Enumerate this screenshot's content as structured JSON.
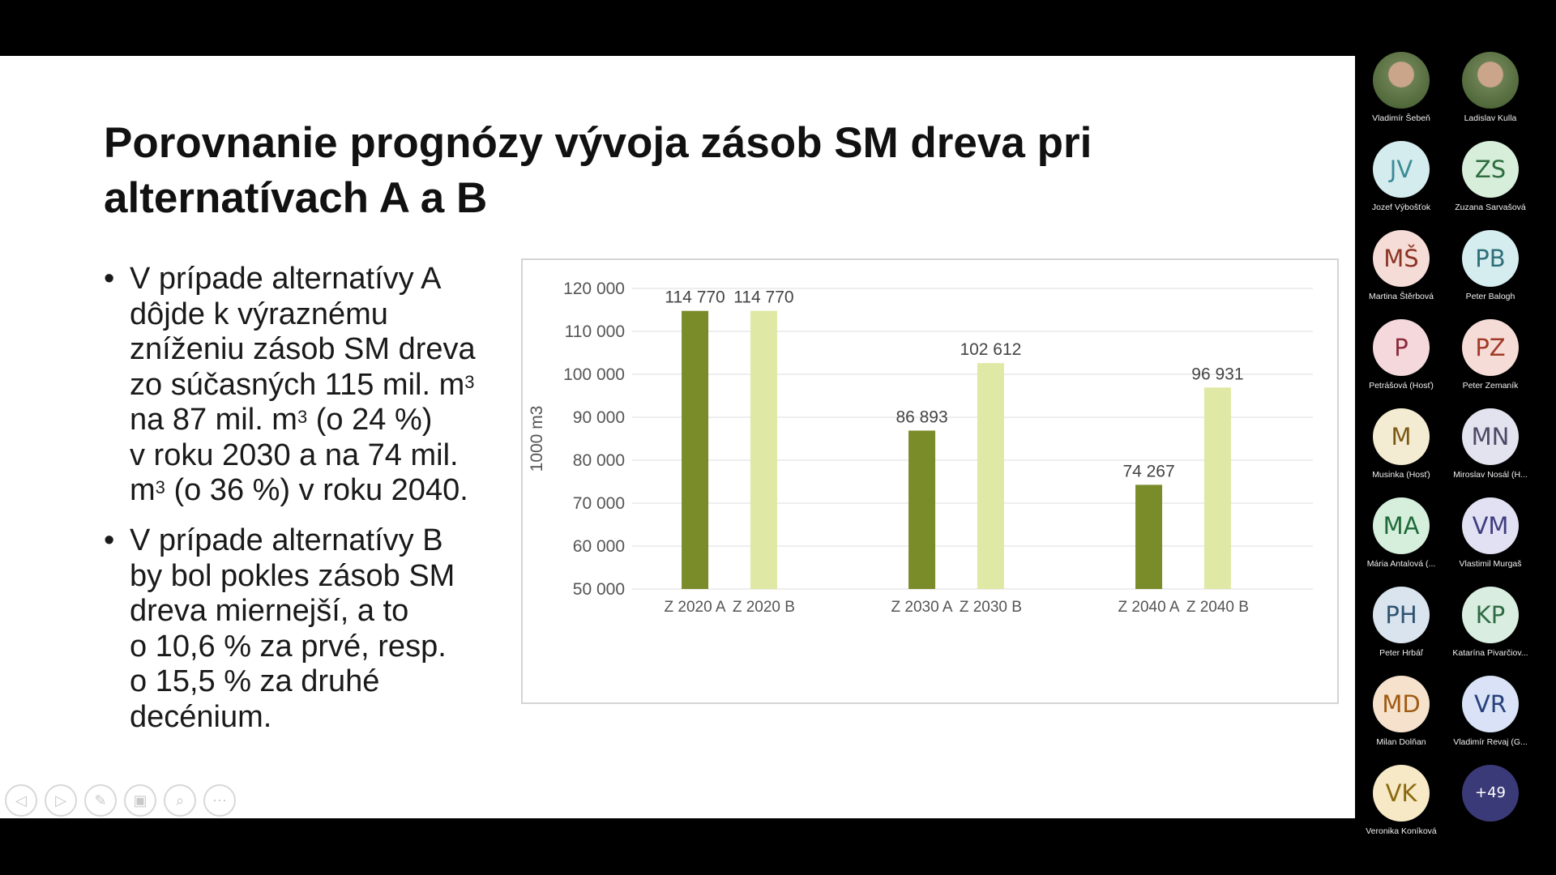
{
  "slide": {
    "title_lines": [
      "Porovnanie prognózy vývoja zásob SM dreva pri",
      "alternatívach A a B"
    ],
    "bullet_symbol": "•",
    "bullet1": {
      "l1": "V prípade alternatívy A",
      "l2": "dôjde k výraznému",
      "l3": "zníženiu zásob SM dreva",
      "l4": "zo súčasných 115 mil. m",
      "l4_sup": "3",
      "l5": "na 87 mil. m",
      "l5_sup": "3",
      "l5_rest": " (o 24 %)",
      "l6": "v roku 2030 a na 74 mil.",
      "l7": "m",
      "l7_sup": "3",
      "l7_rest": " (o 36 %) v roku 2040."
    },
    "bullet2": {
      "lines": [
        "V prípade alternatívy B",
        "by bol pokles zásob SM",
        "dreva miernejší, a to",
        "o 10,6 % za prvé, resp.",
        "o 15,5 % za druhé",
        "decénium."
      ]
    }
  },
  "chart_data": {
    "type": "bar",
    "categories": [
      "Z 2020 A",
      "Z 2020 B",
      "Z 2030 A",
      "Z 2030 B",
      "Z 2040 A",
      "Z 2040 B"
    ],
    "values": [
      114770,
      114770,
      86893,
      102612,
      74267,
      96931
    ],
    "value_labels": [
      "114 770",
      "114 770",
      "86 893",
      "102 612",
      "74 267",
      "96 931"
    ],
    "ylabel": "1000 m3",
    "ylim": [
      50000,
      120000
    ],
    "y_ticks": [
      50000,
      60000,
      70000,
      80000,
      90000,
      100000,
      110000,
      120000
    ],
    "y_tick_labels": [
      "50 000",
      "60 000",
      "70 000",
      "80 000",
      "90 000",
      "100 000",
      "110 000",
      "120 000"
    ],
    "grid": true,
    "colors": {
      "A": "#7a8c2a",
      "B": "#dfe8a4"
    }
  },
  "nav": {
    "icons": [
      "previous-slide-icon",
      "next-slide-icon",
      "pen-icon",
      "slides-icon",
      "zoom-icon",
      "more-options-icon"
    ],
    "glyphs": [
      "◁",
      "▷",
      "✎",
      "▣",
      "⌕",
      "⋯"
    ]
  },
  "participants": [
    {
      "name": "Vladimír Šebeň",
      "initials": "",
      "photo": true,
      "bg": "",
      "fg": ""
    },
    {
      "name": "Ladislav Kulla",
      "initials": "",
      "photo": true,
      "bg": "",
      "fg": ""
    },
    {
      "name": "Jozef Výbošťok",
      "initials": "JV",
      "photo": false,
      "bg": "#d4ecee",
      "fg": "#3a8a96"
    },
    {
      "name": "Zuzana Sarvašová",
      "initials": "ZS",
      "photo": false,
      "bg": "#d7eedb",
      "fg": "#2f6c3f"
    },
    {
      "name": "Martina Štěrbová",
      "initials": "MŠ",
      "photo": false,
      "bg": "#f6dcd6",
      "fg": "#8a3424"
    },
    {
      "name": "Peter Balogh",
      "initials": "PB",
      "photo": false,
      "bg": "#d6edf0",
      "fg": "#2f6f7a"
    },
    {
      "name": "Petrášová (Hosť)",
      "initials": "P",
      "photo": false,
      "bg": "#f4d8db",
      "fg": "#8a2b3c"
    },
    {
      "name": "Peter Zemaník",
      "initials": "PZ",
      "photo": false,
      "bg": "#f6dcd6",
      "fg": "#a23a28"
    },
    {
      "name": "Musinka (Hosť)",
      "initials": "M",
      "photo": false,
      "bg": "#f4ecd2",
      "fg": "#7a5a14"
    },
    {
      "name": "Miroslav Nosál (H...",
      "initials": "MN",
      "photo": false,
      "bg": "#e3e2ef",
      "fg": "#4a4a66"
    },
    {
      "name": "Mária Antalová (...",
      "initials": "MA",
      "photo": false,
      "bg": "#d6efdc",
      "fg": "#1f6a3a"
    },
    {
      "name": "Vlastimil Murgaš",
      "initials": "VM",
      "photo": false,
      "bg": "#e2e1f3",
      "fg": "#3f3d80"
    },
    {
      "name": "Peter Hrbáľ",
      "initials": "PH",
      "photo": false,
      "bg": "#d9e4ee",
      "fg": "#2f5470"
    },
    {
      "name": "Katarína Pivarčiov...",
      "initials": "KP",
      "photo": false,
      "bg": "#d9eee0",
      "fg": "#2f6a44"
    },
    {
      "name": "Milan Dolňan",
      "initials": "MD",
      "photo": false,
      "bg": "#f6e2cc",
      "fg": "#a05a14"
    },
    {
      "name": "Vladimír Revaj (G...",
      "initials": "VR",
      "photo": false,
      "bg": "#d9e2f6",
      "fg": "#26407a"
    },
    {
      "name": "Veronika Koníková",
      "initials": "VK",
      "photo": false,
      "bg": "#f7e9c6",
      "fg": "#8a6a10"
    },
    {
      "name": "",
      "initials": "+49",
      "photo": false,
      "bg": "#3b3a78",
      "fg": "#ffffff"
    }
  ]
}
